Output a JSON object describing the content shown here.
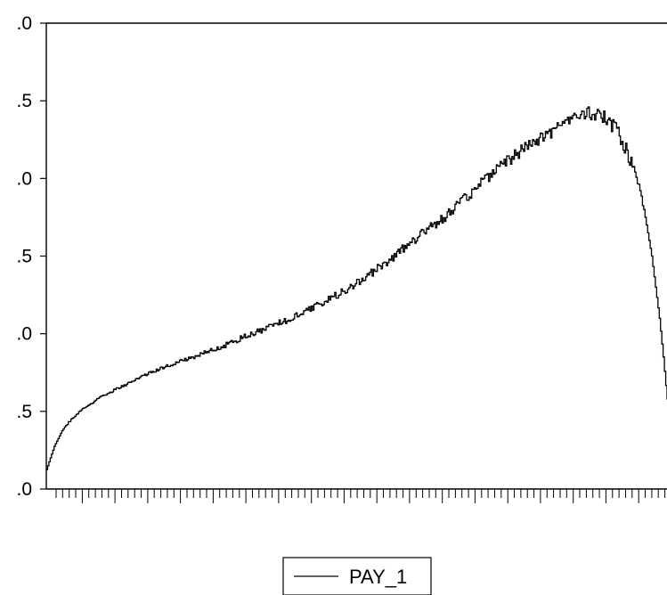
{
  "chart_data": {
    "type": "line",
    "y_tick_labels": [
      ".0",
      ".5",
      ".0",
      ".5",
      ".0",
      ".5",
      ".0"
    ],
    "legend": {
      "placement": "bottom-center",
      "entries": [
        "PAY_1"
      ]
    },
    "series": [
      {
        "name": "PAY_1",
        "line_color": "#000000",
        "points": [
          [
            0.0,
            0.25
          ],
          [
            0.5,
            0.4
          ],
          [
            1.0,
            0.55
          ],
          [
            2.0,
            0.75
          ],
          [
            3.0,
            0.88
          ],
          [
            4.0,
            0.98
          ],
          [
            5.0,
            1.06
          ],
          [
            7.0,
            1.19
          ],
          [
            9.0,
            1.29
          ],
          [
            11.0,
            1.38
          ],
          [
            13.0,
            1.48
          ],
          [
            15.0,
            1.56
          ],
          [
            17.0,
            1.64
          ],
          [
            19.0,
            1.7
          ],
          [
            21.0,
            1.78
          ],
          [
            23.0,
            1.85
          ],
          [
            25.0,
            1.94
          ],
          [
            27.0,
            2.02
          ],
          [
            29.0,
            2.1
          ],
          [
            31.0,
            2.18
          ],
          [
            33.0,
            2.27
          ],
          [
            35.0,
            2.37
          ],
          [
            37.0,
            2.48
          ],
          [
            39.0,
            2.58
          ],
          [
            41.0,
            2.72
          ],
          [
            43.0,
            2.86
          ],
          [
            45.0,
            3.02
          ],
          [
            47.0,
            3.18
          ],
          [
            49.0,
            3.33
          ],
          [
            51.0,
            3.48
          ],
          [
            53.0,
            3.66
          ],
          [
            55.0,
            3.84
          ],
          [
            57.0,
            4.02
          ],
          [
            59.0,
            4.2
          ],
          [
            61.0,
            4.35
          ],
          [
            63.0,
            4.48
          ],
          [
            65.0,
            4.6
          ],
          [
            67.0,
            4.7
          ],
          [
            68.0,
            4.75
          ],
          [
            69.0,
            4.82
          ],
          [
            70.0,
            4.85
          ],
          [
            71.0,
            4.82
          ],
          [
            72.0,
            4.78
          ],
          [
            73.0,
            4.68
          ],
          [
            74.0,
            4.52
          ],
          [
            75.0,
            4.3
          ],
          [
            76.0,
            4.0
          ],
          [
            77.0,
            3.6
          ],
          [
            78.0,
            3.0
          ],
          [
            79.0,
            2.2
          ],
          [
            79.5,
            1.7
          ],
          [
            80.0,
            1.15
          ]
        ]
      }
    ]
  }
}
